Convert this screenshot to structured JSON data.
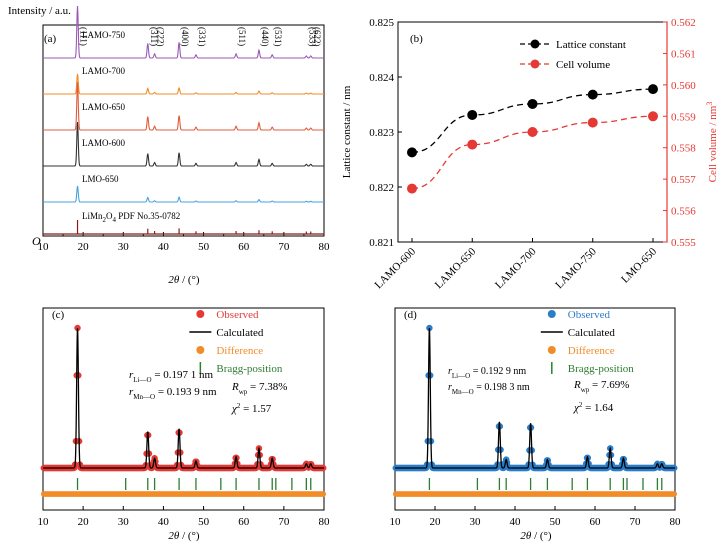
{
  "chart_data": [
    {
      "panel": "(a)",
      "type": "line",
      "title": "",
      "ylabel": "Intensity / a.u.",
      "xlabel_var": "2θ",
      "xlabel_unit": " / (°)",
      "xlim": [
        10,
        80
      ],
      "x_ticks": [
        10,
        20,
        30,
        40,
        50,
        60,
        70,
        80
      ],
      "y_origin_label": "O",
      "series": [
        {
          "name": "LAMO-750",
          "color": "#9b59b6"
        },
        {
          "name": "LAMO-700",
          "color": "#f28c28"
        },
        {
          "name": "LAMO-650",
          "color": "#e05c3c"
        },
        {
          "name": "LAMO-600",
          "color": "#333333"
        },
        {
          "name": "LMO-650",
          "color": "#4aa3df"
        }
      ],
      "reference": {
        "name_main": "LiMn",
        "sub1": "2",
        "name_mid": "O",
        "sub2": "4",
        "name_tail": " PDF No.35-0782",
        "color": "#8b1a1a"
      },
      "peaks": [
        {
          "x": 18.6,
          "label": "(111)",
          "rel": 1.0
        },
        {
          "x": 36.1,
          "label": "(311)",
          "rel": 0.28
        },
        {
          "x": 37.8,
          "label": "(222)",
          "rel": 0.08
        },
        {
          "x": 43.9,
          "label": "(400)",
          "rel": 0.3
        },
        {
          "x": 48.1,
          "label": "(331)",
          "rel": 0.06
        },
        {
          "x": 58.1,
          "label": "(511)",
          "rel": 0.08
        },
        {
          "x": 63.8,
          "label": "(440)",
          "rel": 0.15
        },
        {
          "x": 67.1,
          "label": "(531)",
          "rel": 0.06
        },
        {
          "x": 75.6,
          "label": "(533)",
          "rel": 0.04
        },
        {
          "x": 76.7,
          "label": "(622)",
          "rel": 0.04
        }
      ]
    },
    {
      "panel": "(b)",
      "type": "line",
      "categories": [
        "LAMO-600",
        "LAMO-650",
        "LAMO-700",
        "LAMO-750",
        "LMO-650"
      ],
      "ylabel_left": "Lattice constant / nm",
      "ylabel_right": "Cell volume / nm",
      "ylabel_right_sup": "3",
      "ylim_left": [
        0.821,
        0.825
      ],
      "ylim_right": [
        0.555,
        0.562
      ],
      "y_ticks_left": [
        "0.821",
        "0.822",
        "0.823",
        "0.824",
        "0.825"
      ],
      "y_ticks_right": [
        "0.555",
        "0.556",
        "0.557",
        "0.558",
        "0.559",
        "0.560",
        "0.561",
        "0.562"
      ],
      "series": [
        {
          "name": "Lattice constant",
          "axis": "left",
          "color": "#000000",
          "values": [
            0.82263,
            0.82331,
            0.82351,
            0.82368,
            0.82378
          ]
        },
        {
          "name": "Cell volume",
          "axis": "right",
          "color": "#e53935",
          "values": [
            0.5567,
            0.5581,
            0.5585,
            0.5588,
            0.559
          ]
        }
      ],
      "legend": "top-left"
    },
    {
      "panel": "(c)",
      "type": "scatter",
      "xlim": [
        10,
        80
      ],
      "x_ticks": [
        10,
        20,
        30,
        40,
        50,
        60,
        70,
        80
      ],
      "xlabel_var": "2θ",
      "xlabel_unit": " / (°)",
      "legend": [
        {
          "name": "Observed",
          "color": "#e53935",
          "kind": "circle"
        },
        {
          "name": "Calculated",
          "color": "#000000",
          "kind": "line"
        },
        {
          "name": "Difference",
          "color": "#f28c28",
          "kind": "circle"
        },
        {
          "name": "Bragg-position",
          "color": "#2e7d32",
          "kind": "bar"
        }
      ],
      "r1": {
        "var": "r",
        "sub": "Li—O",
        "value": " = 0.197 1 nm"
      },
      "r2": {
        "var": "r",
        "sub": "Mn—O",
        "value": " = 0.193 9 nm"
      },
      "rwp": {
        "var": "R",
        "sub": "wp",
        "value": " = 7.38%"
      },
      "chi": {
        "var": "χ",
        "sup": "2",
        "value": " = 1.57"
      },
      "peak_heights": [
        1.0,
        0.26,
        0.07,
        0.28,
        0.05,
        0.08,
        0.14,
        0.07,
        0.03,
        0.03
      ],
      "bragg_positions": [
        18.6,
        30.6,
        36.1,
        37.8,
        43.9,
        48.1,
        54.3,
        58.1,
        63.8,
        67.1,
        68.0,
        72.0,
        75.6,
        76.7
      ]
    },
    {
      "panel": "(d)",
      "type": "scatter",
      "xlim": [
        10,
        80
      ],
      "x_ticks": [
        10,
        20,
        30,
        40,
        50,
        60,
        70,
        80
      ],
      "xlabel_var": "2θ",
      "xlabel_unit": " / (°)",
      "legend": [
        {
          "name": "Observed",
          "color": "#2a7dc9",
          "kind": "circle"
        },
        {
          "name": "Calculated",
          "color": "#000000",
          "kind": "line"
        },
        {
          "name": "Difference",
          "color": "#f28c28",
          "kind": "circle"
        },
        {
          "name": "Bragg-position",
          "color": "#2e7d32",
          "kind": "bar"
        }
      ],
      "r1": {
        "var": "r",
        "sub": "Li—O",
        "value": " = 0.192 9 nm"
      },
      "r2": {
        "var": "r",
        "sub": "Mn—O",
        "value": " = 0.198 3 nm"
      },
      "rwp": {
        "var": "R",
        "sub": "wp",
        "value": " = 7.69%"
      },
      "chi": {
        "var": "χ",
        "sup": "2",
        "value": " = 1.64"
      },
      "peak_heights": [
        1.0,
        0.33,
        0.06,
        0.32,
        0.06,
        0.08,
        0.14,
        0.07,
        0.03,
        0.03
      ],
      "bragg_positions": [
        18.6,
        30.6,
        36.1,
        37.8,
        43.9,
        48.1,
        54.3,
        58.1,
        63.8,
        67.1,
        68.0,
        72.0,
        75.6,
        76.7
      ]
    }
  ]
}
